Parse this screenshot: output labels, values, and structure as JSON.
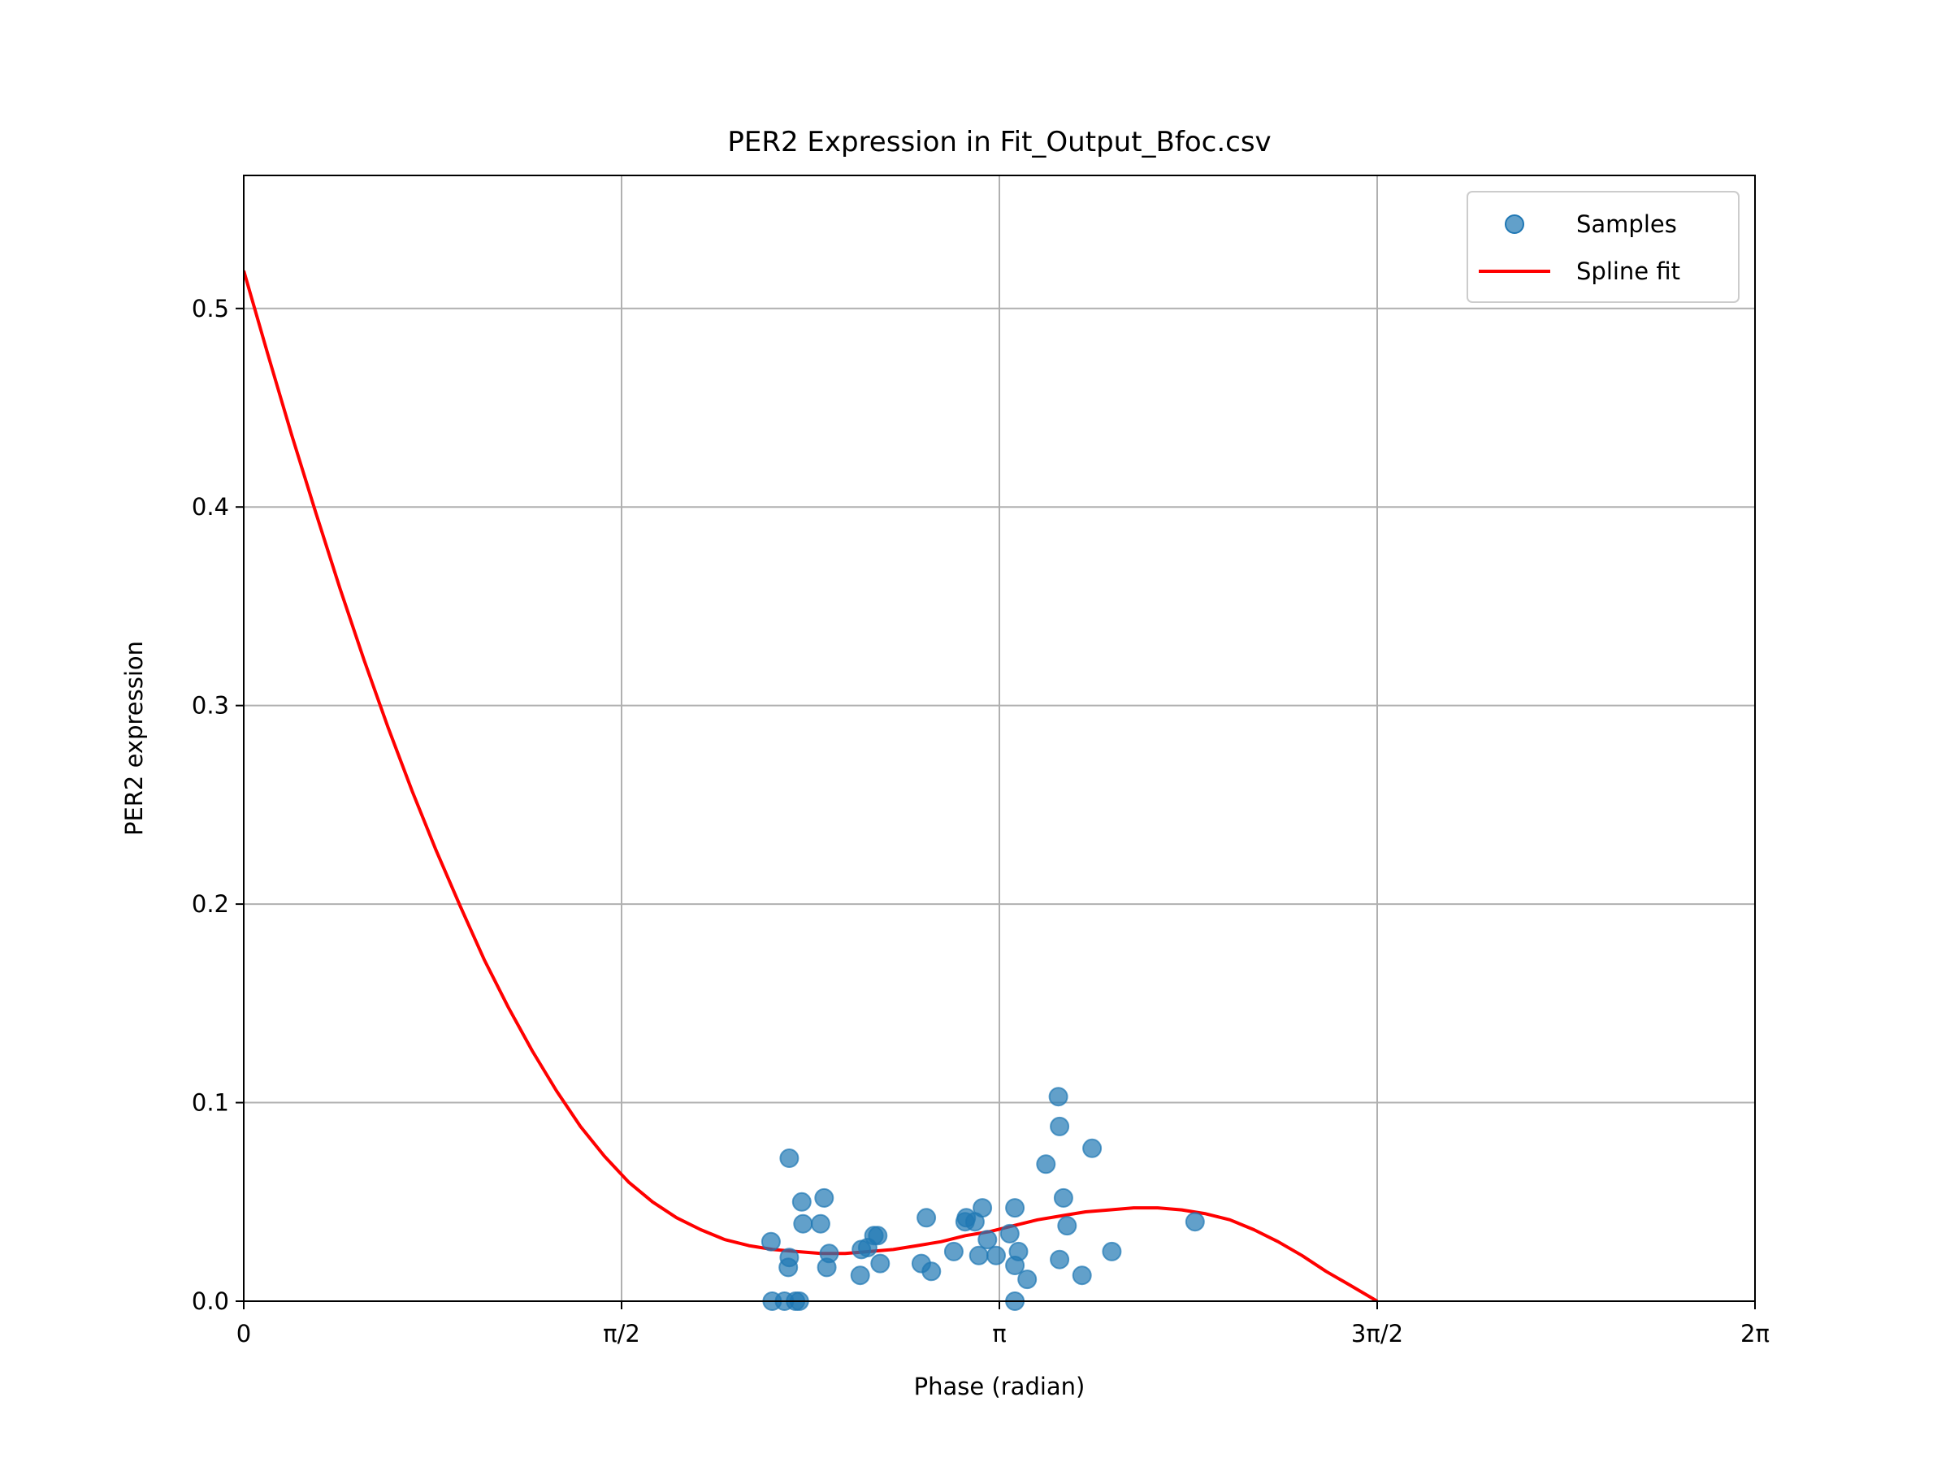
{
  "chart_data": {
    "type": "scatter",
    "title": "PER2 Expression in Fit_Output_Bfoc.csv",
    "xlabel": "Phase (radian)",
    "ylabel": "PER2 expression",
    "xlim": [
      0,
      6.2832
    ],
    "ylim": [
      0,
      0.567
    ],
    "grid": true,
    "legend_position": "top-right",
    "x_ticks": [
      {
        "value": 0,
        "label": "0"
      },
      {
        "value": 1.5708,
        "label": "π/2"
      },
      {
        "value": 3.1416,
        "label": "π"
      },
      {
        "value": 4.7124,
        "label": "3π/2"
      },
      {
        "value": 6.2832,
        "label": "2π"
      }
    ],
    "y_ticks": [
      {
        "value": 0.0,
        "label": "0.0"
      },
      {
        "value": 0.1,
        "label": "0.1"
      },
      {
        "value": 0.2,
        "label": "0.2"
      },
      {
        "value": 0.3,
        "label": "0.3"
      },
      {
        "value": 0.4,
        "label": "0.4"
      },
      {
        "value": 0.5,
        "label": "0.5"
      }
    ],
    "series": [
      {
        "name": "Samples",
        "kind": "scatter",
        "color": "#1f77b4",
        "alpha": 0.7,
        "points": [
          [
            2.197,
            0.0
          ],
          [
            2.248,
            0.0
          ],
          [
            2.294,
            0.0
          ],
          [
            2.31,
            0.0
          ],
          [
            2.192,
            0.03
          ],
          [
            2.268,
            0.022
          ],
          [
            2.264,
            0.017
          ],
          [
            2.268,
            0.072
          ],
          [
            2.32,
            0.05
          ],
          [
            2.325,
            0.039
          ],
          [
            2.398,
            0.039
          ],
          [
            2.413,
            0.052
          ],
          [
            2.424,
            0.017
          ],
          [
            2.434,
            0.024
          ],
          [
            2.563,
            0.013
          ],
          [
            2.568,
            0.026
          ],
          [
            2.594,
            0.027
          ],
          [
            2.62,
            0.033
          ],
          [
            2.636,
            0.033
          ],
          [
            2.646,
            0.019
          ],
          [
            2.817,
            0.019
          ],
          [
            2.838,
            0.042
          ],
          [
            2.859,
            0.015
          ],
          [
            2.952,
            0.025
          ],
          [
            2.999,
            0.04
          ],
          [
            3.004,
            0.042
          ],
          [
            3.04,
            0.04
          ],
          [
            3.056,
            0.023
          ],
          [
            3.071,
            0.047
          ],
          [
            3.092,
            0.031
          ],
          [
            3.128,
            0.023
          ],
          [
            3.185,
            0.034
          ],
          [
            3.206,
            0.018
          ],
          [
            3.206,
            0.0
          ],
          [
            3.206,
            0.047
          ],
          [
            3.221,
            0.025
          ],
          [
            3.257,
            0.011
          ],
          [
            3.335,
            0.069
          ],
          [
            3.387,
            0.103
          ],
          [
            3.392,
            0.088
          ],
          [
            3.392,
            0.021
          ],
          [
            3.408,
            0.052
          ],
          [
            3.423,
            0.038
          ],
          [
            3.485,
            0.013
          ],
          [
            3.527,
            0.077
          ],
          [
            3.609,
            0.025
          ],
          [
            3.955,
            0.04
          ]
        ]
      },
      {
        "name": "Spline fit",
        "kind": "line",
        "color": "#ff0000",
        "points": [
          [
            0.0,
            0.519
          ],
          [
            0.1,
            0.477
          ],
          [
            0.2,
            0.436
          ],
          [
            0.3,
            0.397
          ],
          [
            0.4,
            0.359
          ],
          [
            0.5,
            0.323
          ],
          [
            0.6,
            0.289
          ],
          [
            0.7,
            0.257
          ],
          [
            0.8,
            0.227
          ],
          [
            0.9,
            0.199
          ],
          [
            1.0,
            0.172
          ],
          [
            1.1,
            0.148
          ],
          [
            1.2,
            0.126
          ],
          [
            1.3,
            0.106
          ],
          [
            1.4,
            0.088
          ],
          [
            1.5,
            0.073
          ],
          [
            1.6,
            0.06
          ],
          [
            1.7,
            0.05
          ],
          [
            1.8,
            0.042
          ],
          [
            1.9,
            0.036
          ],
          [
            2.0,
            0.031
          ],
          [
            2.1,
            0.028
          ],
          [
            2.2,
            0.026
          ],
          [
            2.3,
            0.025
          ],
          [
            2.4,
            0.024
          ],
          [
            2.5,
            0.024
          ],
          [
            2.6,
            0.025
          ],
          [
            2.7,
            0.026
          ],
          [
            2.8,
            0.028
          ],
          [
            2.9,
            0.03
          ],
          [
            3.0,
            0.033
          ],
          [
            3.1,
            0.035
          ],
          [
            3.2,
            0.038
          ],
          [
            3.3,
            0.041
          ],
          [
            3.4,
            0.043
          ],
          [
            3.5,
            0.045
          ],
          [
            3.6,
            0.046
          ],
          [
            3.7,
            0.047
          ],
          [
            3.8,
            0.047
          ],
          [
            3.9,
            0.046
          ],
          [
            4.0,
            0.044
          ],
          [
            4.1,
            0.041
          ],
          [
            4.2,
            0.036
          ],
          [
            4.3,
            0.03
          ],
          [
            4.4,
            0.023
          ],
          [
            4.5,
            0.015
          ],
          [
            4.6,
            0.008
          ],
          [
            4.7124,
            0.0
          ]
        ]
      }
    ]
  }
}
